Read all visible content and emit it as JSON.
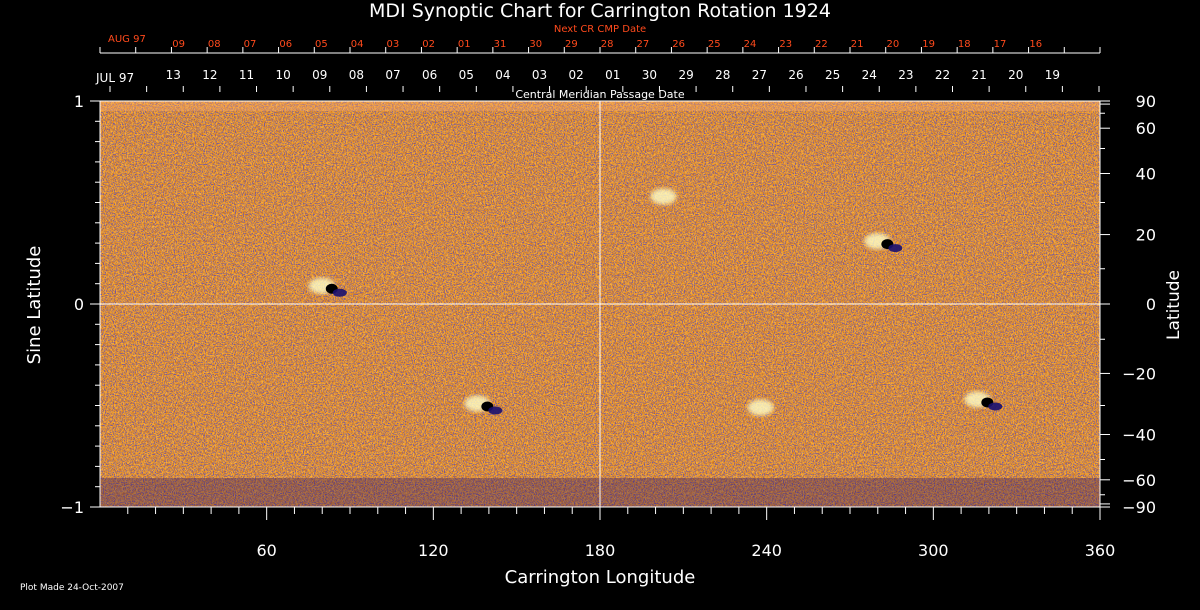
{
  "chart_data": {
    "type": "heatmap",
    "title": "MDI Synoptic Chart for Carrington Rotation 1924",
    "xlabel": "Carrington Longitude",
    "ylabel": "Sine Latitude",
    "ylabel_right": "Latitude",
    "xlim": [
      0,
      360
    ],
    "ylim": [
      -1,
      1
    ],
    "x_ticks": [
      60,
      120,
      180,
      240,
      300,
      360
    ],
    "y_ticks_left": [
      {
        "value": 1,
        "label": "1"
      },
      {
        "value": 0,
        "label": "0"
      },
      {
        "value": -1,
        "label": "−1"
      }
    ],
    "lat_ticks_right": [
      90,
      60,
      40,
      20,
      0,
      -20,
      -40,
      -60,
      -90
    ],
    "lat_labels_right": [
      "90",
      "60",
      "40",
      "20",
      "0",
      "−20",
      "−40",
      "−60",
      "−90"
    ],
    "grid_lines": {
      "vertical": [
        180
      ],
      "horizontal": [
        0
      ]
    },
    "top_axis_caption": "Central Meridian Passage Date",
    "next_cr_caption": "Next CR CMP Date",
    "next_cr_month": "AUG 97",
    "next_cr_dates": [
      "09",
      "08",
      "07",
      "06",
      "05",
      "04",
      "03",
      "02",
      "01",
      "31",
      "30",
      "29",
      "28",
      "27",
      "26",
      "25",
      "24",
      "23",
      "22",
      "21",
      "20",
      "19",
      "18",
      "17",
      "16"
    ],
    "cmp_month": "JUL 97",
    "cmp_dates": [
      "13",
      "12",
      "11",
      "10",
      "09",
      "08",
      "07",
      "06",
      "05",
      "04",
      "03",
      "02",
      "01",
      "30",
      "29",
      "28",
      "27",
      "26",
      "25",
      "24",
      "23",
      "22",
      "21",
      "20",
      "19"
    ],
    "footer": "Plot Made 24-Oct-2007",
    "active_regions": [
      {
        "lon": 82,
        "sinlat": 0.08,
        "polarity": "mixed"
      },
      {
        "lon": 138,
        "sinlat": -0.5,
        "polarity": "mixed"
      },
      {
        "lon": 205,
        "sinlat": 0.52,
        "polarity": "positive"
      },
      {
        "lon": 282,
        "sinlat": 0.3,
        "polarity": "mixed"
      },
      {
        "lon": 318,
        "sinlat": -0.48,
        "polarity": "mixed"
      },
      {
        "lon": 240,
        "sinlat": -0.52,
        "polarity": "positive"
      }
    ],
    "colors": {
      "background": "#000000",
      "map_base": "#e84a0e",
      "map_light": "#ff9a30",
      "map_dark": "#a81400",
      "negative": "#1a1070",
      "positive": "#ffffc8",
      "next_cr_text": "#ff4a1c",
      "axis": "#ffffff"
    }
  }
}
